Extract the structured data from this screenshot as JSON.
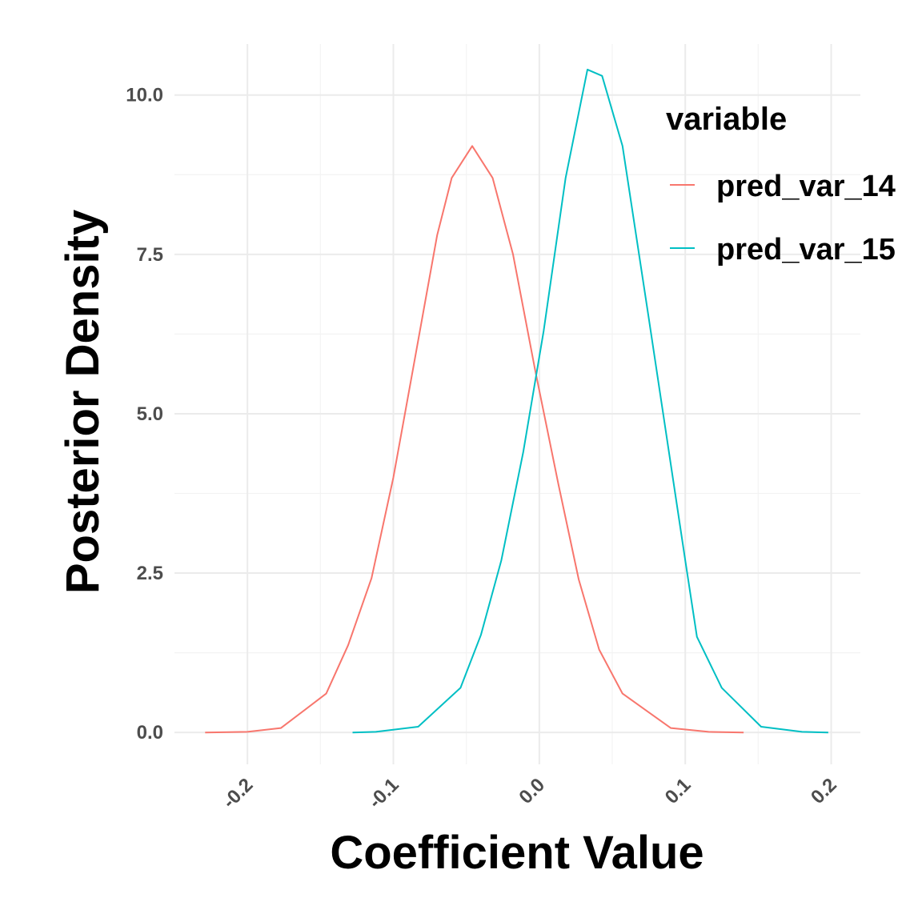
{
  "chart_data": {
    "type": "line",
    "xlabel": "Coefficient Value",
    "ylabel": "Posterior Density",
    "xlim": [
      -0.25,
      0.22
    ],
    "ylim": [
      -0.5,
      10.8
    ],
    "x_ticks": [
      -0.2,
      -0.1,
      0.0,
      0.1,
      0.2
    ],
    "x_tick_labels": [
      "-0.2",
      "-0.1",
      "0.0",
      "0.1",
      "0.2"
    ],
    "y_ticks": [
      0.0,
      2.5,
      5.0,
      7.5,
      10.0
    ],
    "y_tick_labels": [
      "0.0",
      "2.5",
      "5.0",
      "7.5",
      "10.0"
    ],
    "grid": true,
    "legend": {
      "title": "variable",
      "placement": "top-right",
      "entries": [
        "pred_var_14",
        "pred_var_15"
      ]
    },
    "series": [
      {
        "name": "pred_var_14",
        "color": "#F8766D",
        "x": [
          -0.229,
          -0.2,
          -0.177,
          -0.146,
          -0.131,
          -0.115,
          -0.1,
          -0.085,
          -0.07,
          -0.06,
          -0.046,
          -0.032,
          -0.018,
          -0.003,
          0.013,
          0.027,
          0.041,
          0.057,
          0.09,
          0.116,
          0.14
        ],
        "y": [
          0.0,
          0.01,
          0.07,
          0.61,
          1.37,
          2.42,
          4.0,
          5.9,
          7.8,
          8.7,
          9.2,
          8.7,
          7.5,
          5.7,
          3.9,
          2.4,
          1.3,
          0.61,
          0.07,
          0.01,
          0.0
        ]
      },
      {
        "name": "pred_var_15",
        "color": "#00BFC4",
        "x": [
          -0.128,
          -0.112,
          -0.083,
          -0.054,
          -0.04,
          -0.026,
          -0.011,
          0.003,
          0.018,
          0.033,
          0.043,
          0.057,
          0.075,
          0.1,
          0.108,
          0.125,
          0.152,
          0.18,
          0.198
        ],
        "y": [
          0.0,
          0.01,
          0.09,
          0.7,
          1.53,
          2.7,
          4.4,
          6.3,
          8.7,
          10.4,
          10.3,
          9.2,
          6.5,
          2.7,
          1.5,
          0.7,
          0.09,
          0.01,
          0.0
        ]
      }
    ]
  }
}
